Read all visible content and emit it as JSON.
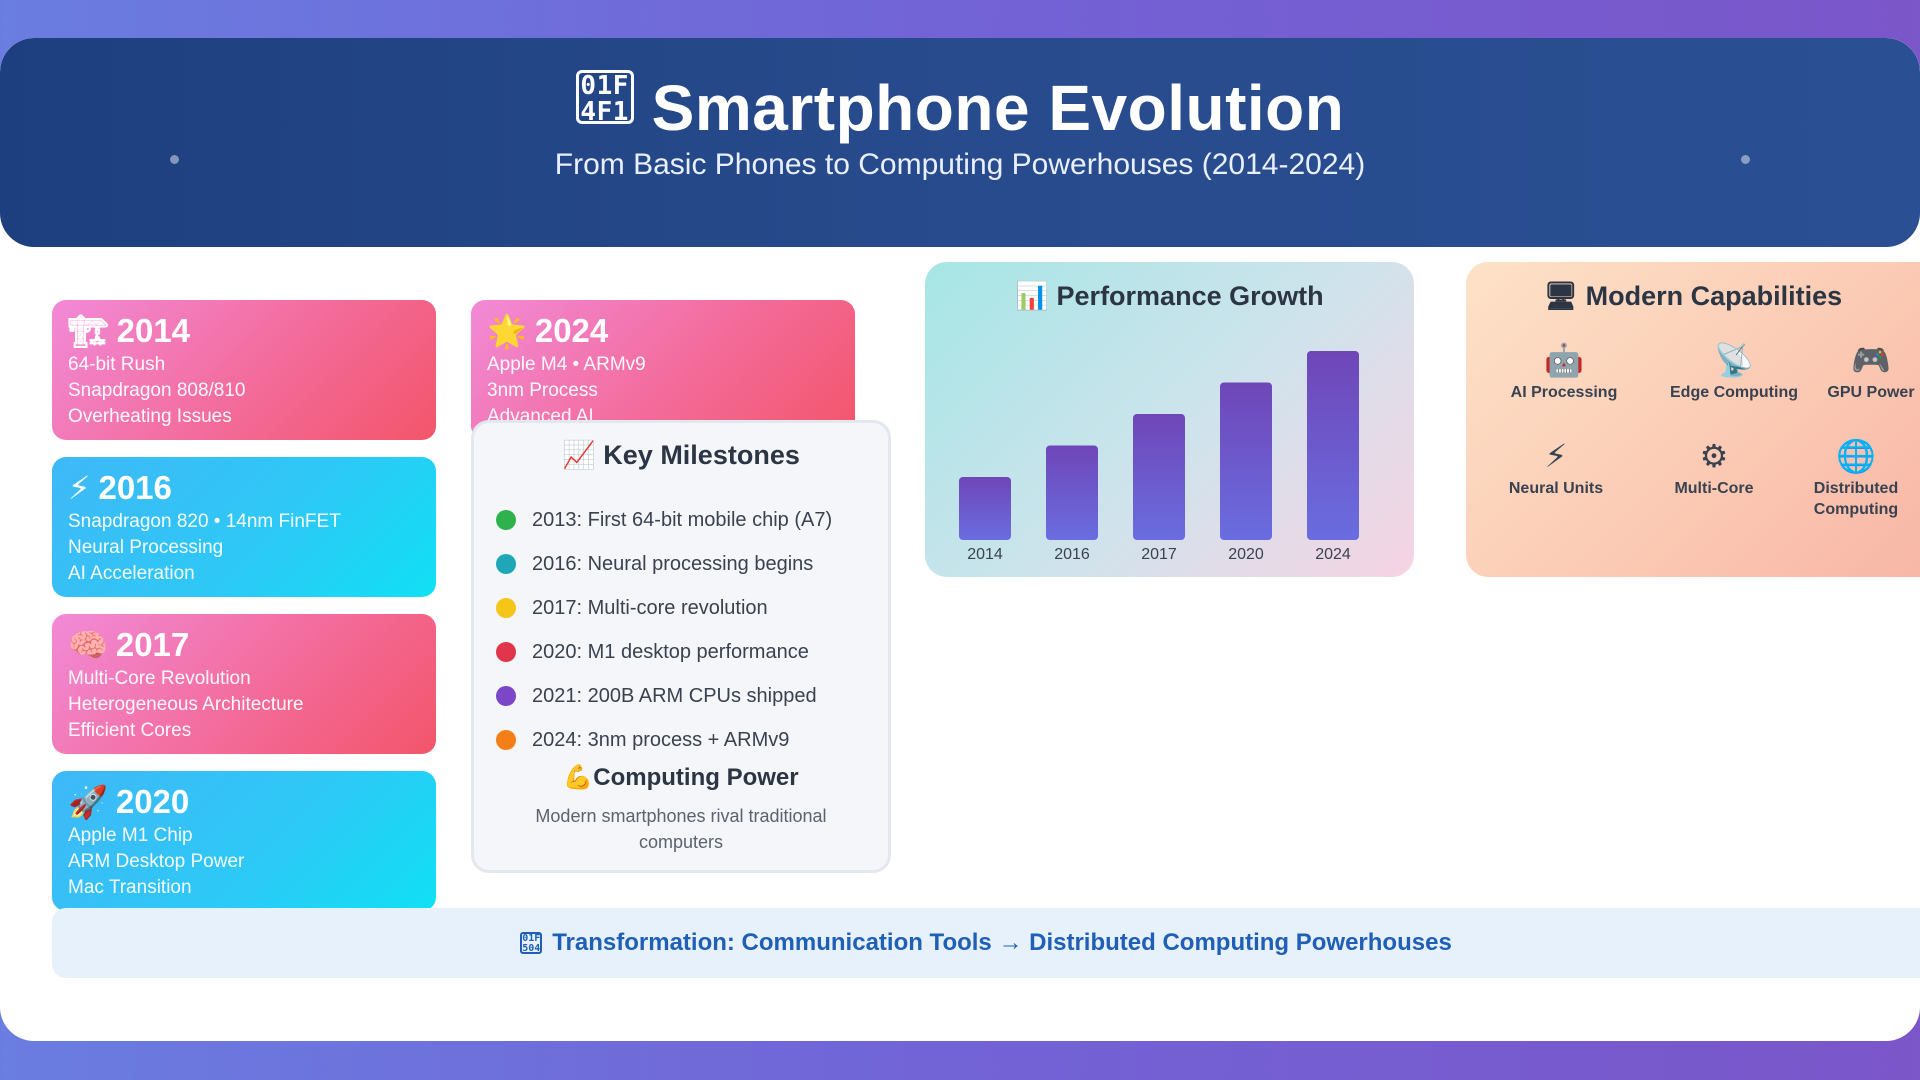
{
  "header": {
    "title": "Smartphone Evolution",
    "title_icon": "mobile-phone-icon",
    "title_glyph": "01F 4F1",
    "subtitle": "From Basic Phones to Computing Powerhouses (2014-2024)"
  },
  "timeline": [
    {
      "year": "2014",
      "icon": "🏗",
      "lines": [
        "64-bit Rush",
        "Snapdragon 808/810",
        "Overheating Issues"
      ],
      "color": "pink"
    },
    {
      "year": "2016",
      "icon": "⚡",
      "lines": [
        "Snapdragon 820 • 14nm FinFET",
        "Neural Processing",
        "AI Acceleration"
      ],
      "color": "cyan"
    },
    {
      "year": "2017",
      "icon": "🧠",
      "lines": [
        "Multi-Core Revolution",
        "Heterogeneous Architecture",
        "Efficient Cores"
      ],
      "color": "pink"
    },
    {
      "year": "2020",
      "icon": "🚀",
      "lines": [
        "Apple M1 Chip",
        "ARM Desktop Power",
        "Mac Transition"
      ],
      "color": "cyan"
    },
    {
      "year": "2024",
      "icon": "🌟",
      "lines": [
        "Apple M4 • ARMv9",
        "3nm Process",
        "Advanced AI"
      ],
      "color": "pink"
    }
  ],
  "milestones": {
    "title": "Key Milestones",
    "icon": "📈",
    "items": [
      {
        "text": "2013: First 64-bit mobile chip (A7)",
        "color": "#2fb24c"
      },
      {
        "text": "2016: Neural processing begins",
        "color": "#1fa7b8"
      },
      {
        "text": "2017: Multi-core revolution",
        "color": "#f5c518"
      },
      {
        "text": "2020: M1 desktop performance",
        "color": "#e0354a"
      },
      {
        "text": "2021: 200B ARM CPUs shipped",
        "color": "#7c46c9"
      },
      {
        "text": "2024: 3nm process + ARMv9",
        "color": "#f57f17"
      }
    ],
    "computing_power_title": "Computing Power",
    "computing_power_icon": "💪",
    "computing_power_desc": "Modern smartphones rival traditional computers"
  },
  "performance": {
    "title": "Performance Growth",
    "icon": "📊"
  },
  "chart_data": {
    "type": "bar",
    "title": "Performance Growth",
    "categories": [
      "2014",
      "2016",
      "2017",
      "2020",
      "2024"
    ],
    "values": [
      30,
      45,
      60,
      75,
      90
    ],
    "ylim": [
      0,
      100
    ],
    "xlabel": "",
    "ylabel": "",
    "grid": false,
    "bar_color": "#6f4fc4"
  },
  "capabilities": {
    "title": "Modern Capabilities",
    "icon": "🖥",
    "items": [
      {
        "label": "AI Processing",
        "icon": "🤖"
      },
      {
        "label": "Edge Computing",
        "icon": "📡"
      },
      {
        "label": "GPU Power",
        "icon": "🎮"
      },
      {
        "label": "Neural Units",
        "icon": "⚡"
      },
      {
        "label": "Multi-Core",
        "icon": "⚙"
      },
      {
        "label": "Distributed Computing",
        "icon": "🌐"
      }
    ]
  },
  "footer": {
    "glyph": "01F 504",
    "text": "Transformation: Communication Tools → Distributed Computing Powerhouses"
  }
}
